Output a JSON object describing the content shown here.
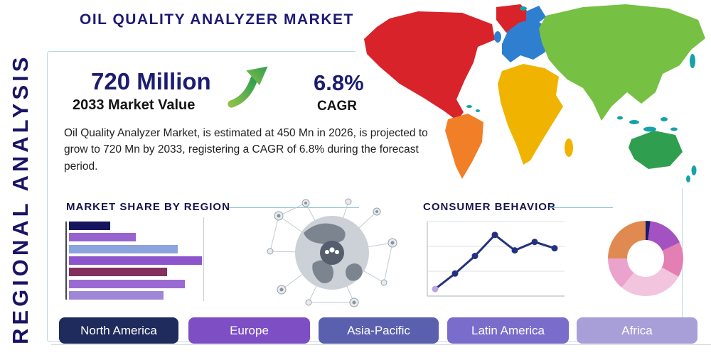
{
  "header": {
    "title": "OIL QUALITY ANALYZER MARKET",
    "side_label": "REGIONAL ANALYSIS"
  },
  "stats": {
    "value": "720 Million",
    "value_caption": "2033 Market Value",
    "cagr": "6.8%",
    "cagr_caption": "CAGR",
    "description": "Oil Quality Analyzer Market, is estimated at 450 Mn in 2026, is projected to grow to 720 Mn by 2033, registering a CAGR of 6.8% during the forecast period."
  },
  "sections": {
    "market_share_title": "MARKET SHARE BY REGION",
    "consumer_behavior_title": "CONSUMER BEHAVIOR"
  },
  "regions": [
    {
      "label": "North America",
      "color": "#1f2b5c"
    },
    {
      "label": "Europe",
      "color": "#7d4ec4"
    },
    {
      "label": "Asia-Pacific",
      "color": "#5a5fae"
    },
    {
      "label": "Latin America",
      "color": "#7a6ccb"
    },
    {
      "label": "Africa",
      "color": "#a89fd8"
    }
  ],
  "map": {
    "colors": {
      "north_america": "#d8232a",
      "greenland": "#d8232a",
      "south_america": "#f07f28",
      "europe": "#2f7fd0",
      "africa": "#f0b400",
      "asia": "#76c043",
      "australia": "#2f9e4f",
      "islands": "#17a2a8"
    }
  },
  "chart_data": [
    {
      "type": "bar",
      "title": "MARKET SHARE BY REGION",
      "orientation": "horizontal",
      "values": [
        31,
        50,
        82,
        100,
        74,
        87,
        71
      ],
      "xlim": [
        0,
        100
      ],
      "colors": [
        "#14155e",
        "#9663cf",
        "#8ca4de",
        "#8d55cc",
        "#83305f",
        "#9a6ad2",
        "#9f87d8"
      ],
      "categories_labeled": false
    },
    {
      "type": "line",
      "title": "CONSUMER BEHAVIOR",
      "values": [
        0.8,
        3.0,
        5.5,
        8.5,
        6.3,
        7.5,
        6.6
      ],
      "ylim": [
        0,
        10
      ],
      "line_color": "#24317e",
      "first_point_color": "#b9a6e0",
      "grid": true
    },
    {
      "type": "pie",
      "donut": true,
      "slices": [
        {
          "value": 2,
          "color": "#1b1b6e"
        },
        {
          "value": 16,
          "color": "#a452c2"
        },
        {
          "value": 15,
          "color": "#e47fb4"
        },
        {
          "value": 28,
          "color": "#f2c4de"
        },
        {
          "value": 14,
          "color": "#eaa3cd"
        },
        {
          "value": 25,
          "color": "#e08a52"
        }
      ]
    }
  ]
}
